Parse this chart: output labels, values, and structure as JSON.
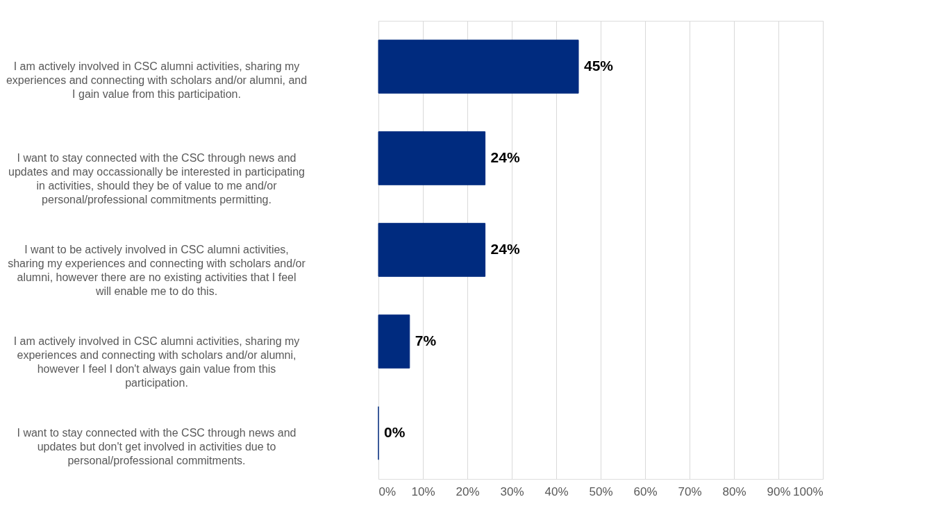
{
  "chart_data": {
    "type": "bar",
    "orientation": "horizontal",
    "categories": [
      "I am actively involved in CSC alumni activities, sharing my experiences and connecting with scholars and/or alumni, and I gain value from this participation.",
      "I want to stay connected with the CSC through news and updates and may occassionally be interested in participating in activities, should they be of value to me and/or personal/professional commitments permitting.",
      "I want to be actively involved in CSC alumni activities, sharing my experiences and connecting with scholars and/or alumni, however there are no existing activities that I feel will enable me to do this.",
      "I am actively involved in CSC alumni activities, sharing my experiences and connecting with scholars and/or alumni, however I feel I don't always gain value from this participation.",
      "I want to stay connected with the CSC through news and updates but don't get involved in activities due to personal/professional commitments."
    ],
    "values": [
      45,
      24,
      24,
      7,
      0
    ],
    "value_labels": [
      "45%",
      "24%",
      "24%",
      "7%",
      "0%"
    ],
    "color": "#002b7f",
    "xlim": [
      0,
      100
    ],
    "xticks": [
      {
        "value": 0,
        "label": "0%"
      },
      {
        "value": 10,
        "label": "10%"
      },
      {
        "value": 20,
        "label": "20%"
      },
      {
        "value": 30,
        "label": "30%"
      },
      {
        "value": 40,
        "label": "40%"
      },
      {
        "value": 50,
        "label": "50%"
      },
      {
        "value": 60,
        "label": "60%"
      },
      {
        "value": 70,
        "label": "70%"
      },
      {
        "value": 80,
        "label": "80%"
      },
      {
        "value": 90,
        "label": "90%"
      },
      {
        "value": 100,
        "label": "100%"
      }
    ],
    "grid": "x"
  }
}
